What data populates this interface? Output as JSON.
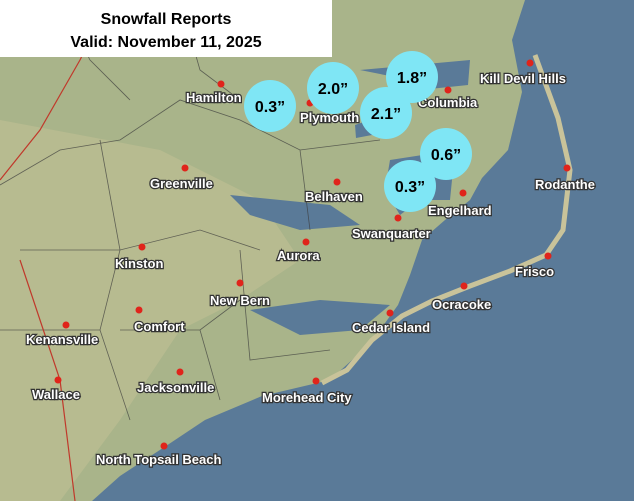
{
  "header": {
    "title": "Snowfall Reports",
    "subtitle": "Valid: November 11, 2025"
  },
  "cities": [
    {
      "name": "Hamilton"
    },
    {
      "name": "Plymouth"
    },
    {
      "name": "Columbia"
    },
    {
      "name": "Kill Devil Hills"
    },
    {
      "name": "Greenville"
    },
    {
      "name": "Belhaven"
    },
    {
      "name": "Engelhard"
    },
    {
      "name": "Rodanthe"
    },
    {
      "name": "Swanquarter"
    },
    {
      "name": "Aurora"
    },
    {
      "name": "Kinston"
    },
    {
      "name": "Frisco"
    },
    {
      "name": "New Bern"
    },
    {
      "name": "Ocracoke"
    },
    {
      "name": "Kenansville"
    },
    {
      "name": "Comfort"
    },
    {
      "name": "Cedar Island"
    },
    {
      "name": "Jacksonville"
    },
    {
      "name": "Wallace"
    },
    {
      "name": "Morehead City"
    },
    {
      "name": "North Topsail Beach"
    }
  ],
  "reports": [
    {
      "label": "0.3”"
    },
    {
      "label": "2.0”"
    },
    {
      "label": "1.8”"
    },
    {
      "label": "2.1”"
    },
    {
      "label": "0.6”"
    },
    {
      "label": "0.3”"
    }
  ]
}
